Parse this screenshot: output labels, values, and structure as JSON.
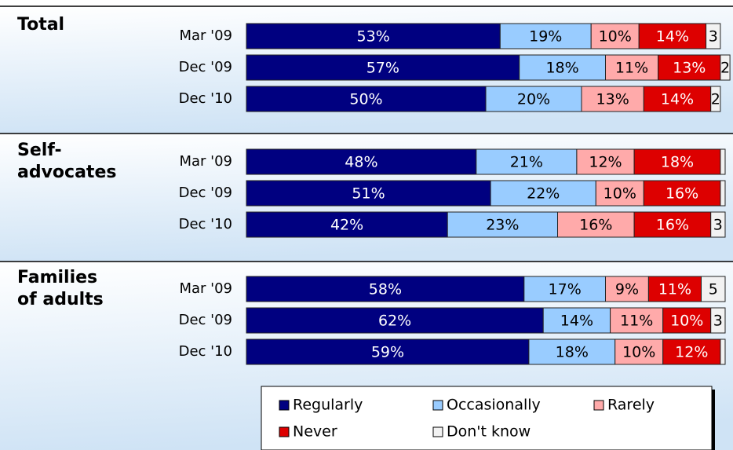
{
  "chart_data": {
    "type": "bar",
    "orientation": "horizontal",
    "stacked": true,
    "groups": [
      "Total",
      "Self-advocates",
      "Families of adults"
    ],
    "categories": [
      [
        "Mar '09",
        "Dec '09",
        "Dec '10"
      ],
      [
        "Mar '09",
        "Dec '09",
        "Dec '10"
      ],
      [
        "Mar '09",
        "Dec '09",
        "Dec '10"
      ]
    ],
    "xlim": [
      0,
      100
    ],
    "legend": "bottom",
    "series": [
      {
        "name": "Regularly",
        "color": "#000080",
        "values": [
          [
            53,
            57,
            50
          ],
          [
            48,
            51,
            42
          ],
          [
            58,
            62,
            59
          ]
        ],
        "value_labels": [
          [
            "53%",
            "57%",
            "50%"
          ],
          [
            "48%",
            "51%",
            "42%"
          ],
          [
            "58%",
            "62%",
            "59%"
          ]
        ]
      },
      {
        "name": "Occasionally",
        "color": "#99ccff",
        "values": [
          [
            19,
            18,
            20
          ],
          [
            21,
            22,
            23
          ],
          [
            17,
            14,
            18
          ]
        ],
        "value_labels": [
          [
            "19%",
            "18%",
            "20%"
          ],
          [
            "21%",
            "22%",
            "23%"
          ],
          [
            "17%",
            "14%",
            "18%"
          ]
        ]
      },
      {
        "name": "Rarely",
        "color": "#ffaaaa",
        "values": [
          [
            10,
            11,
            13
          ],
          [
            12,
            10,
            16
          ],
          [
            9,
            11,
            10
          ]
        ],
        "value_labels": [
          [
            "10%",
            "11%",
            "13%"
          ],
          [
            "12%",
            "10%",
            "16%"
          ],
          [
            "9%",
            "11%",
            "10%"
          ]
        ]
      },
      {
        "name": "Never",
        "color": "#dd0000",
        "values": [
          [
            14,
            13,
            14
          ],
          [
            18,
            16,
            16
          ],
          [
            11,
            10,
            12
          ]
        ],
        "value_labels": [
          [
            "14%",
            "13%",
            "14%"
          ],
          [
            "18%",
            "16%",
            "16%"
          ],
          [
            "11%",
            "10%",
            "12%"
          ]
        ]
      },
      {
        "name": "Don't know",
        "color": "#f2f2f2",
        "values": [
          [
            3,
            2,
            2
          ],
          [
            1,
            1,
            3
          ],
          [
            5,
            3,
            1
          ]
        ],
        "value_labels": [
          [
            "3",
            "2",
            "2"
          ],
          [
            null,
            null,
            "3"
          ],
          [
            "5",
            "3",
            null
          ]
        ]
      }
    ]
  }
}
